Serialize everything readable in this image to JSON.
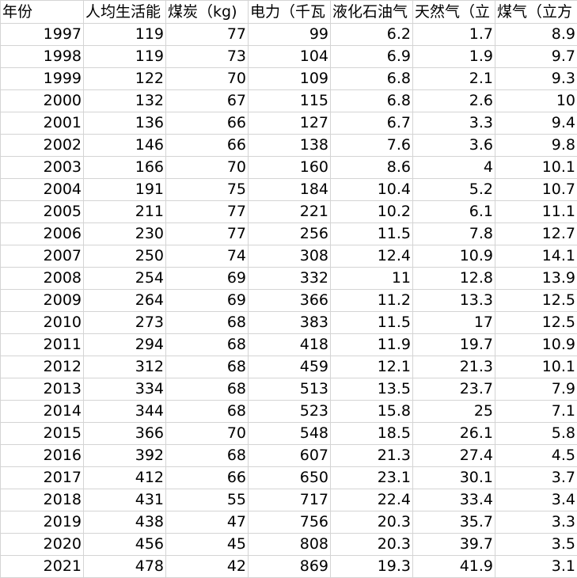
{
  "sheet": {
    "headers": [
      "年份",
      "人均生活能",
      "煤炭（kg)",
      "电力（千瓦",
      "液化石油气",
      "天然气（立",
      "煤气（立方"
    ],
    "rows": [
      [
        "1997",
        "119",
        "77",
        "99",
        "6.2",
        "1.7",
        "8.9"
      ],
      [
        "1998",
        "119",
        "73",
        "104",
        "6.9",
        "1.9",
        "9.7"
      ],
      [
        "1999",
        "122",
        "70",
        "109",
        "6.8",
        "2.1",
        "9.3"
      ],
      [
        "2000",
        "132",
        "67",
        "115",
        "6.8",
        "2.6",
        "10"
      ],
      [
        "2001",
        "136",
        "66",
        "127",
        "6.7",
        "3.3",
        "9.4"
      ],
      [
        "2002",
        "146",
        "66",
        "138",
        "7.6",
        "3.6",
        "9.8"
      ],
      [
        "2003",
        "166",
        "70",
        "160",
        "8.6",
        "4",
        "10.1"
      ],
      [
        "2004",
        "191",
        "75",
        "184",
        "10.4",
        "5.2",
        "10.7"
      ],
      [
        "2005",
        "211",
        "77",
        "221",
        "10.2",
        "6.1",
        "11.1"
      ],
      [
        "2006",
        "230",
        "77",
        "256",
        "11.5",
        "7.8",
        "12.7"
      ],
      [
        "2007",
        "250",
        "74",
        "308",
        "12.4",
        "10.9",
        "14.1"
      ],
      [
        "2008",
        "254",
        "69",
        "332",
        "11",
        "12.8",
        "13.9"
      ],
      [
        "2009",
        "264",
        "69",
        "366",
        "11.2",
        "13.3",
        "12.5"
      ],
      [
        "2010",
        "273",
        "68",
        "383",
        "11.5",
        "17",
        "12.5"
      ],
      [
        "2011",
        "294",
        "68",
        "418",
        "11.9",
        "19.7",
        "10.9"
      ],
      [
        "2012",
        "312",
        "68",
        "459",
        "12.1",
        "21.3",
        "10.1"
      ],
      [
        "2013",
        "334",
        "68",
        "513",
        "13.5",
        "23.7",
        "7.9"
      ],
      [
        "2014",
        "344",
        "68",
        "523",
        "15.8",
        "25",
        "7.1"
      ],
      [
        "2015",
        "366",
        "70",
        "548",
        "18.5",
        "26.1",
        "5.8"
      ],
      [
        "2016",
        "392",
        "68",
        "607",
        "21.3",
        "27.4",
        "4.5"
      ],
      [
        "2017",
        "412",
        "66",
        "650",
        "23.1",
        "30.1",
        "3.7"
      ],
      [
        "2018",
        "431",
        "55",
        "717",
        "22.4",
        "33.4",
        "3.4"
      ],
      [
        "2019",
        "438",
        "47",
        "756",
        "20.3",
        "35.7",
        "3.3"
      ],
      [
        "2020",
        "456",
        "45",
        "808",
        "20.3",
        "39.7",
        "3.5"
      ],
      [
        "2021",
        "478",
        "42",
        "869",
        "19.3",
        "41.9",
        "3.1"
      ]
    ]
  }
}
